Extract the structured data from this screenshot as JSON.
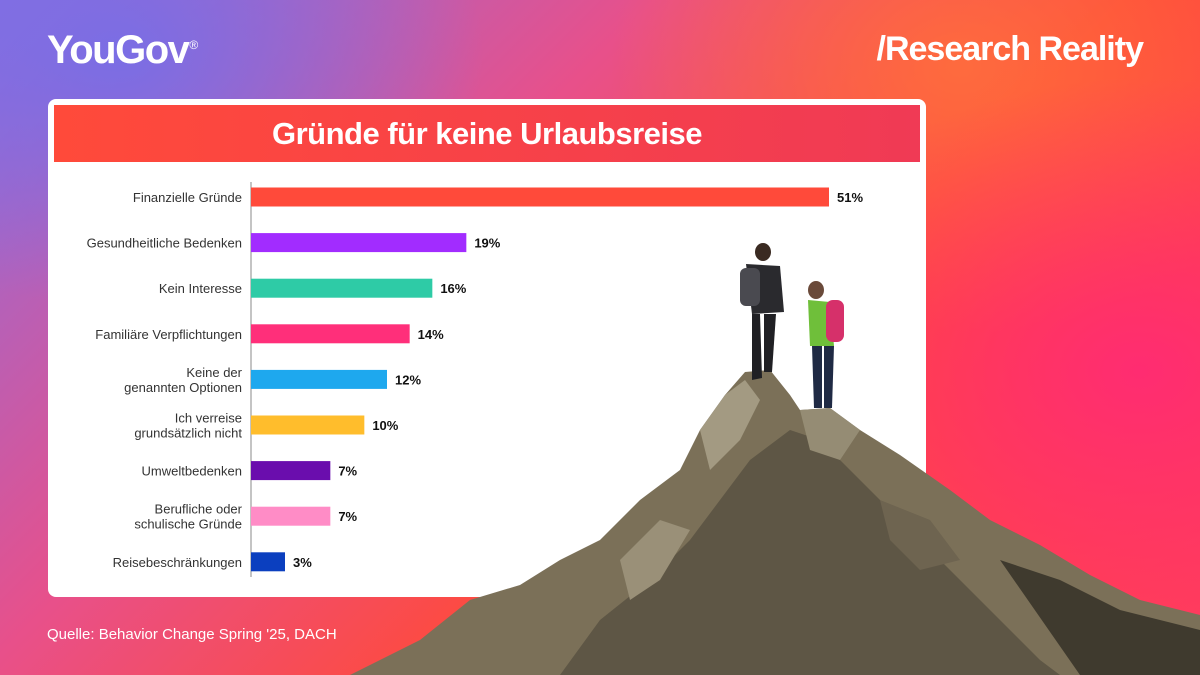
{
  "header": {
    "logo": "YouGov",
    "logo_mark": "®",
    "brand": "/Research Reality"
  },
  "footer": {
    "source": "Quelle: Behavior Change Spring '25, DACH"
  },
  "chart_data": {
    "type": "bar",
    "orientation": "horizontal",
    "title": "Gründe für keine Urlaubsreise",
    "categories": [
      [
        "Finanzielle Gründe"
      ],
      [
        "Gesundheitliche Bedenken"
      ],
      [
        "Kein Interesse"
      ],
      [
        "Familiäre Verpflichtungen"
      ],
      [
        "Keine der",
        "genannten Optionen"
      ],
      [
        "Ich verreise",
        "grundsätzlich nicht"
      ],
      [
        "Umweltbedenken"
      ],
      [
        "Berufliche oder",
        "schulische Gründe"
      ],
      [
        "Reisebeschränkungen"
      ]
    ],
    "values": [
      51,
      19,
      16,
      14,
      12,
      10,
      7,
      7,
      3
    ],
    "value_labels": [
      "51%",
      "19%",
      "16%",
      "14%",
      "12%",
      "10%",
      "7%",
      "7%",
      "3%"
    ],
    "colors": [
      "#ff4a3a",
      "#a22cff",
      "#2ecba6",
      "#ff2f7a",
      "#1ea8ee",
      "#ffbd2c",
      "#6a0dad",
      "#ff8cc6",
      "#0b3fbf"
    ],
    "xlim": [
      0,
      51
    ],
    "grid": false,
    "legend": "none"
  }
}
